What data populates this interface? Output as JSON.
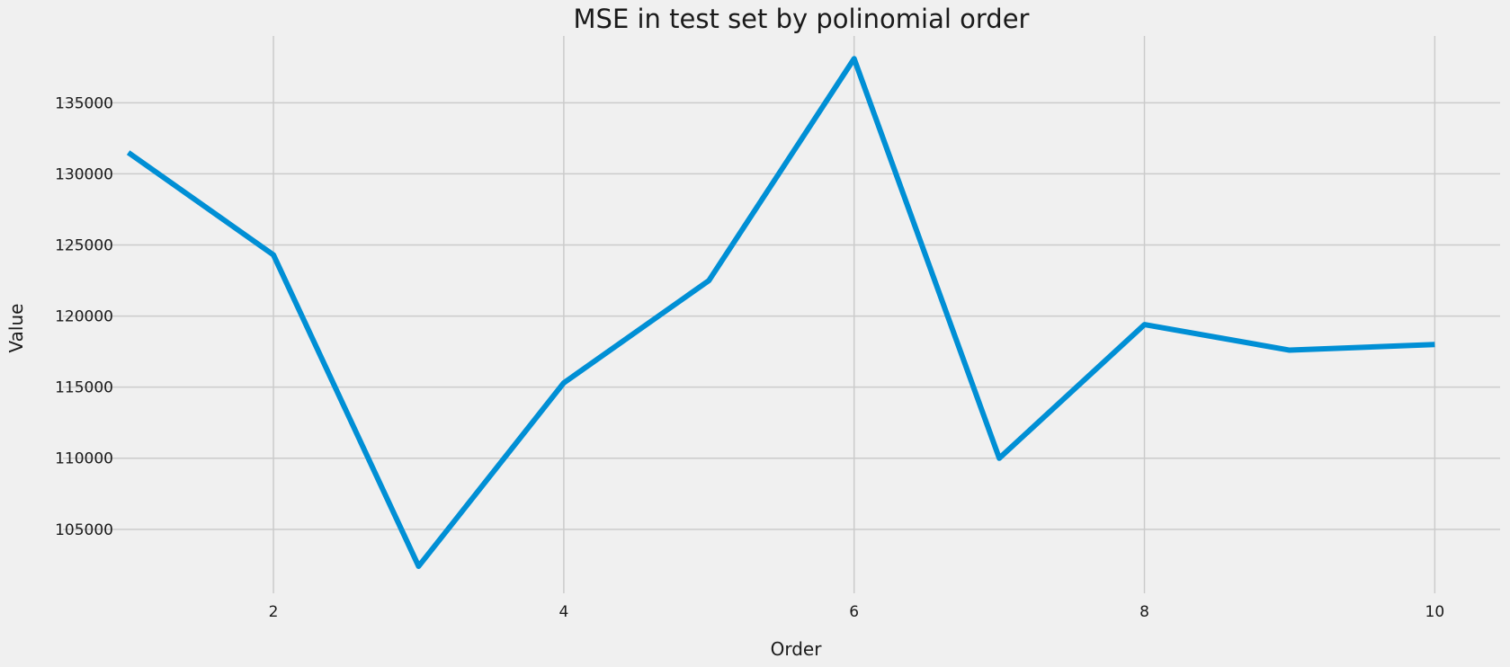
{
  "chart_data": {
    "type": "line",
    "title": "MSE in test set by polinomial order",
    "xlabel": "Order",
    "ylabel": "Value",
    "x": [
      1,
      2,
      3,
      4,
      5,
      6,
      7,
      8,
      9,
      10
    ],
    "series": [
      {
        "values": [
          131500,
          124300,
          102400,
          115300,
          122500,
          138100,
          110000,
          119400,
          117600,
          118000
        ]
      }
    ],
    "xlim": [
      0.55,
      10.45
    ],
    "ylim": [
      100500,
      139700
    ],
    "xticks": [
      2,
      4,
      6,
      8,
      10
    ],
    "yticks": [
      105000,
      110000,
      115000,
      120000,
      125000,
      130000,
      135000
    ],
    "grid": true,
    "legend": "none",
    "colors": {
      "line": "#008fd5",
      "background": "#f0f0f0",
      "grid": "#cbcbcb",
      "text": "#1a1a1a"
    }
  }
}
